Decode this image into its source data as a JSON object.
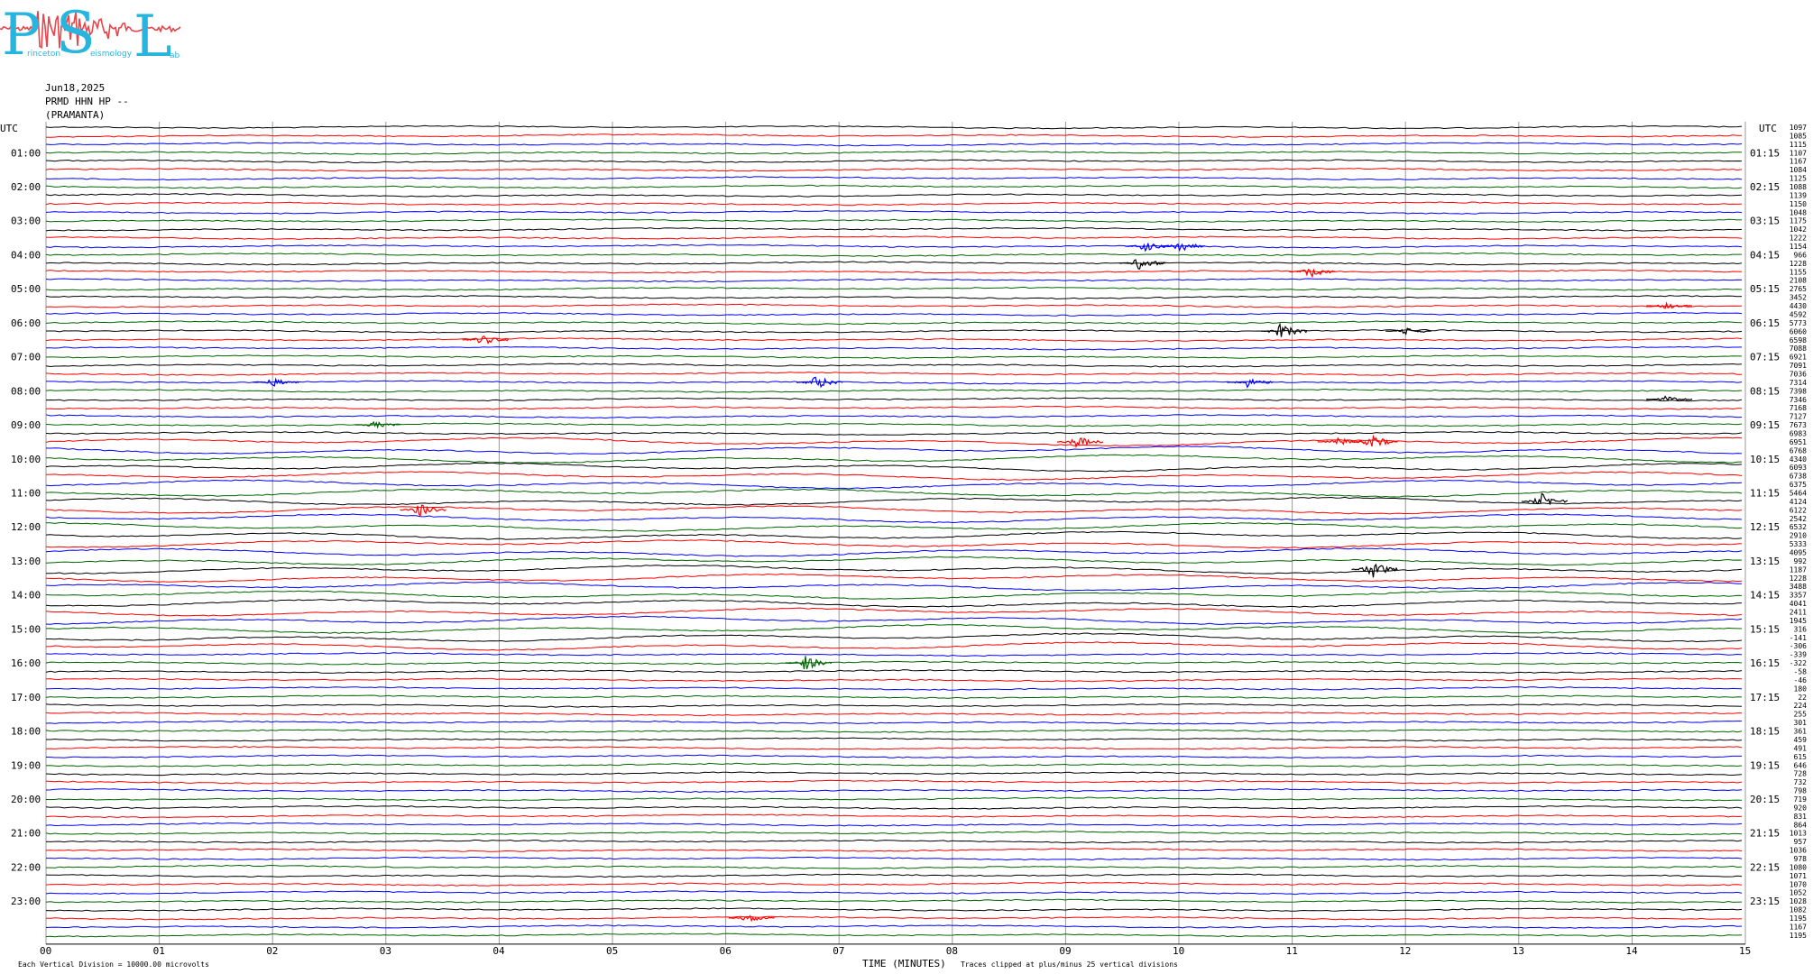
{
  "logo": {
    "letters": [
      "P",
      "S",
      "L"
    ],
    "words": [
      "rinceton",
      "eismology",
      "ab"
    ],
    "colors": {
      "letters": "#27b5e0",
      "squiggle": "#e8454a"
    }
  },
  "header": {
    "date": "Jun18,2025",
    "station": "PRMD HHN HP --",
    "name": "(PRAMANTA)"
  },
  "chart_data": {
    "type": "line",
    "title": "",
    "xlabel": "TIME (MINUTES)",
    "xlim": [
      0,
      15
    ],
    "x_ticks": [
      "00",
      "01",
      "02",
      "03",
      "04",
      "05",
      "06",
      "07",
      "08",
      "09",
      "10",
      "11",
      "12",
      "13",
      "14",
      "15"
    ],
    "left_axis_title": "UTC",
    "right_axis_title": "UTC",
    "left_hour_labels": [
      "01:00",
      "02:00",
      "03:00",
      "04:00",
      "05:00",
      "06:00",
      "07:00",
      "08:00",
      "09:00",
      "10:00",
      "11:00",
      "12:00",
      "13:00",
      "14:00",
      "15:00",
      "16:00",
      "17:00",
      "18:00",
      "19:00",
      "20:00",
      "21:00",
      "22:00",
      "23:00"
    ],
    "right_hour_labels": [
      "01:15",
      "02:15",
      "03:15",
      "04:15",
      "05:15",
      "06:15",
      "07:15",
      "08:15",
      "09:15",
      "10:15",
      "11:15",
      "12:15",
      "13:15",
      "14:15",
      "15:15",
      "16:15",
      "17:15",
      "18:15",
      "19:15",
      "20:15",
      "21:15",
      "22:15",
      "23:15"
    ],
    "trace_colors": [
      "#000000",
      "#ff0000",
      "#0000ff",
      "#006400"
    ],
    "grid": true,
    "trace_offsets": [
      1097,
      1085,
      1115,
      1107,
      1167,
      1084,
      1125,
      1088,
      1139,
      1150,
      1048,
      1175,
      1042,
      1222,
      1154,
      966,
      1228,
      1155,
      2108,
      2765,
      3452,
      4430,
      4592,
      5773,
      6060,
      6598,
      7088,
      6921,
      7091,
      7036,
      7314,
      7398,
      7346,
      7168,
      7127,
      7673,
      6983,
      6951,
      6768,
      4340,
      6093,
      6738,
      6375,
      5464,
      4124,
      6122,
      2542,
      6532,
      2910,
      5333,
      4095,
      992,
      1187,
      1228,
      3488,
      3357,
      4041,
      2411,
      1945,
      316,
      -141,
      -306,
      -339,
      -322,
      -58,
      -46,
      180,
      22,
      224,
      255,
      301,
      361,
      459,
      491,
      615,
      646,
      728,
      732,
      798,
      719,
      920,
      831,
      864,
      1013,
      957,
      1036,
      978,
      1080,
      1071,
      1070,
      1052,
      1028,
      1082,
      1195,
      1167,
      1195
    ],
    "events": [
      {
        "trace": 14,
        "minute": 9.7,
        "amplitude": 6
      },
      {
        "trace": 14,
        "minute": 10.0,
        "amplitude": 7
      },
      {
        "trace": 16,
        "minute": 9.65,
        "amplitude": 8
      },
      {
        "trace": 17,
        "minute": 11.15,
        "amplitude": 7
      },
      {
        "trace": 21,
        "minute": 14.3,
        "amplitude": 4
      },
      {
        "trace": 24,
        "minute": 10.9,
        "amplitude": 9
      },
      {
        "trace": 24,
        "minute": 12.0,
        "amplitude": 4
      },
      {
        "trace": 25,
        "minute": 3.85,
        "amplitude": 6
      },
      {
        "trace": 30,
        "minute": 2.0,
        "amplitude": 5
      },
      {
        "trace": 30,
        "minute": 6.8,
        "amplitude": 8
      },
      {
        "trace": 30,
        "minute": 10.6,
        "amplitude": 6
      },
      {
        "trace": 32,
        "minute": 14.3,
        "amplitude": 4
      },
      {
        "trace": 35,
        "minute": 2.9,
        "amplitude": 4
      },
      {
        "trace": 37,
        "minute": 9.1,
        "amplitude": 7
      },
      {
        "trace": 37,
        "minute": 11.4,
        "amplitude": 5
      },
      {
        "trace": 37,
        "minute": 11.7,
        "amplitude": 8
      },
      {
        "trace": 45,
        "minute": 3.3,
        "amplitude": 8
      },
      {
        "trace": 44,
        "minute": 13.2,
        "amplitude": 9
      },
      {
        "trace": 52,
        "minute": 11.7,
        "amplitude": 11
      },
      {
        "trace": 63,
        "minute": 6.7,
        "amplitude": 9
      },
      {
        "trace": 93,
        "minute": 6.2,
        "amplitude": 5
      }
    ],
    "annotations": {
      "scale_note": "Each Vertical Division = 10000.00 microvolts",
      "clip_note": "Traces clipped at plus/minus 25 vertical divisions"
    }
  }
}
